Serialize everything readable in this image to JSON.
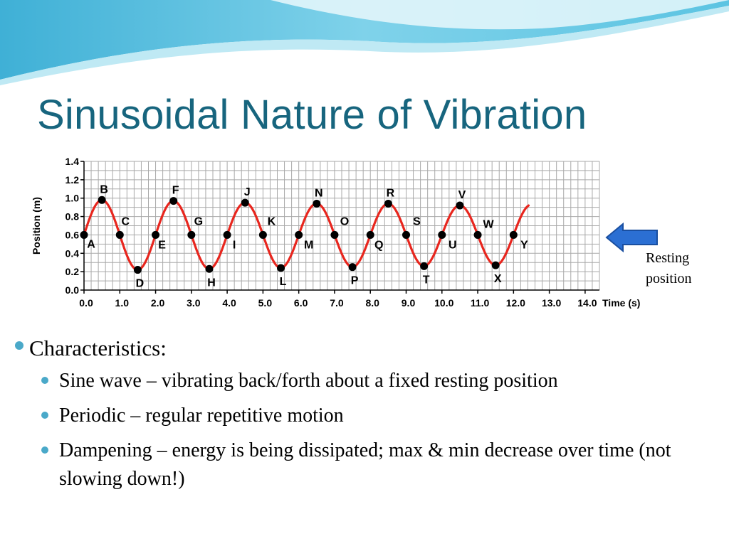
{
  "slide": {
    "title": "Sinusoidal Nature of Vibration",
    "colors": {
      "title": "#17657e",
      "bullet": "#4aa9c9",
      "wave": "#e8261e",
      "arrow": "#2b6fd3"
    },
    "arrow_icon": "arrow-left-icon",
    "resting_label": [
      "Resting",
      "position"
    ]
  },
  "chart_data": {
    "type": "line",
    "xlabel": "Time (s)",
    "ylabel": "Position (m)",
    "xlim": [
      0,
      14.4
    ],
    "ylim": [
      0,
      1.4
    ],
    "x_ticks": [
      "0.0",
      "1.0",
      "2.0",
      "3.0",
      "4.0",
      "5.0",
      "6.0",
      "7.0",
      "8.0",
      "9.0",
      "10.0",
      "11.0",
      "12.0",
      "13.0",
      "14.0"
    ],
    "y_ticks": [
      "0.0",
      "0.2",
      "0.4",
      "0.6",
      "0.8",
      "1.0",
      "1.2",
      "1.4"
    ],
    "grid": true,
    "period": 2,
    "resting_position": 0.6,
    "curve_end_value": 0.92,
    "points": [
      {
        "label": "A",
        "x": 0.0,
        "y": 0.6
      },
      {
        "label": "B",
        "x": 0.5,
        "y": 0.98
      },
      {
        "label": "C",
        "x": 1.0,
        "y": 0.6
      },
      {
        "label": "D",
        "x": 1.5,
        "y": 0.22
      },
      {
        "label": "E",
        "x": 2.0,
        "y": 0.6
      },
      {
        "label": "F",
        "x": 2.5,
        "y": 0.97
      },
      {
        "label": "G",
        "x": 3.0,
        "y": 0.6
      },
      {
        "label": "H",
        "x": 3.5,
        "y": 0.23
      },
      {
        "label": "I",
        "x": 4.0,
        "y": 0.6
      },
      {
        "label": "J",
        "x": 4.5,
        "y": 0.95
      },
      {
        "label": "K",
        "x": 5.0,
        "y": 0.6
      },
      {
        "label": "L",
        "x": 5.5,
        "y": 0.24
      },
      {
        "label": "M",
        "x": 6.0,
        "y": 0.6
      },
      {
        "label": "N",
        "x": 6.5,
        "y": 0.94
      },
      {
        "label": "O",
        "x": 7.0,
        "y": 0.6
      },
      {
        "label": "P",
        "x": 7.5,
        "y": 0.25
      },
      {
        "label": "Q",
        "x": 8.0,
        "y": 0.6
      },
      {
        "label": "R",
        "x": 8.5,
        "y": 0.94
      },
      {
        "label": "S",
        "x": 9.0,
        "y": 0.6
      },
      {
        "label": "T",
        "x": 9.5,
        "y": 0.26
      },
      {
        "label": "U",
        "x": 10.0,
        "y": 0.6
      },
      {
        "label": "V",
        "x": 10.5,
        "y": 0.92
      },
      {
        "label": "W",
        "x": 11.0,
        "y": 0.6
      },
      {
        "label": "X",
        "x": 11.5,
        "y": 0.27
      },
      {
        "label": "Y",
        "x": 12.0,
        "y": 0.6
      }
    ]
  },
  "bullets": {
    "heading": "Characteristics:",
    "items": [
      "Sine wave – vibrating back/forth about a fixed resting position",
      "Periodic – regular repetitive motion",
      "Dampening – energy is being dissipated; max & min decrease over time (not slowing down!)"
    ]
  }
}
